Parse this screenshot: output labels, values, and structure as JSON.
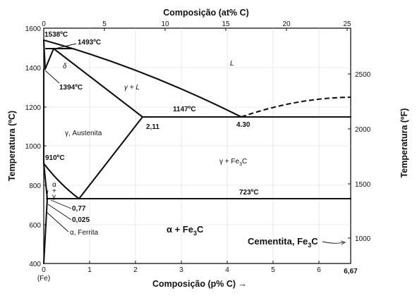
{
  "top_axis": {
    "title": "Composição (at% C)",
    "ticks": [
      "0",
      "5",
      "10",
      "15",
      "20",
      "25"
    ]
  },
  "bottom_axis": {
    "title": "Composição (p% C) →",
    "ticks": [
      "0",
      "1",
      "2",
      "3",
      "4",
      "5",
      "6",
      "6,67"
    ],
    "origin_label": "(Fe)"
  },
  "left_axis": {
    "title": "Temperatura (ºC)",
    "ticks": [
      "400",
      "600",
      "800",
      "1000",
      "1200",
      "1400",
      "1600"
    ]
  },
  "right_axis": {
    "title": "Temperatura (ºF)",
    "ticks": [
      "1000",
      "1500",
      "2000",
      "2500"
    ]
  },
  "labels": {
    "t1538": "1538ºC",
    "t1493": "1493ºC",
    "t1394": "1394ºC",
    "t1147": "1147ºC",
    "t910": "910ºC",
    "t723": "723ºC",
    "c211": "2,11",
    "c430": "4.30",
    "c077": "0,77",
    "c0025": "0,025",
    "delta": "δ",
    "liquid": "L",
    "gamma_L": "γ + L",
    "austenita": "γ, Austenita",
    "gamma_fe3c_g": "γ + Fe",
    "gamma_fe3c_sub": "3",
    "gamma_fe3c_c": "C",
    "alpha": "α",
    "plus": "+",
    "gamma": "γ",
    "ferrita": "α, Ferrita",
    "alpha_fe3c_main": "α + Fe",
    "alpha_fe3c_sub": "3",
    "alpha_fe3c_c": "C",
    "cementita_main": "Cementita, Fe",
    "cementita_sub": "3",
    "cementita_c": "C"
  }
}
